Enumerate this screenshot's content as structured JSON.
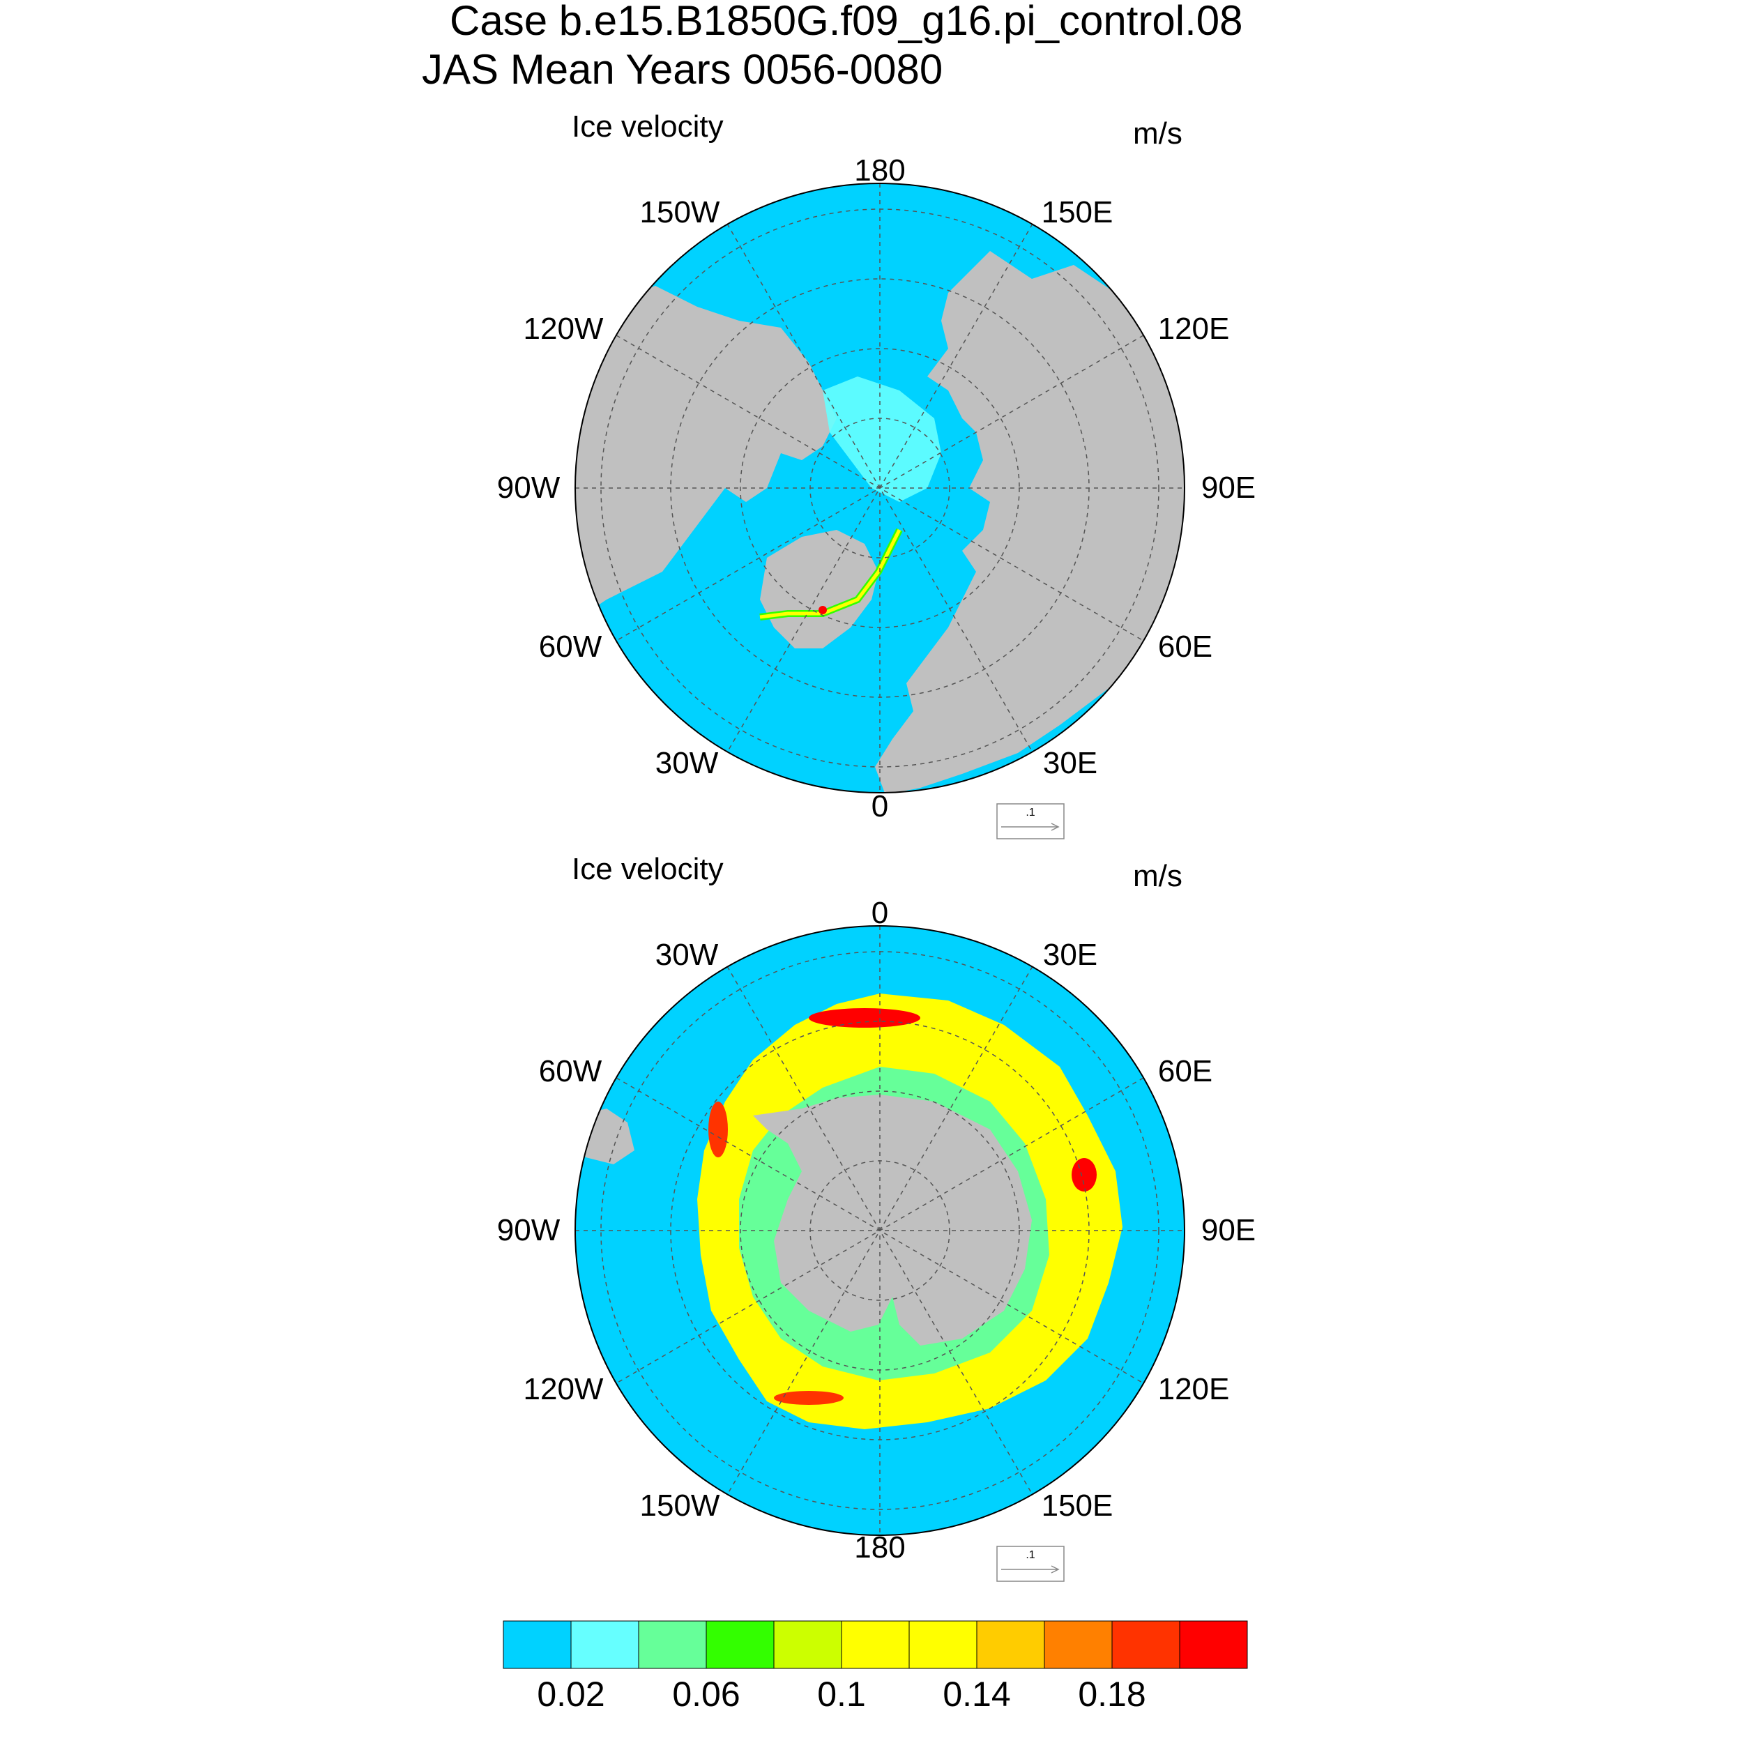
{
  "header": {
    "case_title": "Case b.e15.B1850G.f09_g16.pi_control.08",
    "period_title": "JAS Mean    Years 0056-0080"
  },
  "panels": [
    {
      "id": "north",
      "field_label": "Ice velocity",
      "units": "m/s",
      "ref_vector_label": ".1",
      "lon_labels": {
        "top": "180",
        "bottom": "0",
        "left": "90W",
        "right": "90E",
        "upper_left_1": "150W",
        "upper_left_2": "120W",
        "upper_right_1": "150E",
        "upper_right_2": "120E",
        "lower_left_1": "60W",
        "lower_left_2": "30W",
        "lower_right_1": "60E",
        "lower_right_2": "30E"
      }
    },
    {
      "id": "south",
      "field_label": "Ice velocity",
      "units": "m/s",
      "ref_vector_label": ".1",
      "lon_labels": {
        "top": "0",
        "bottom": "180",
        "left": "90W",
        "right": "90E",
        "upper_left_1": "30W",
        "upper_left_2": "60W",
        "upper_right_1": "30E",
        "upper_right_2": "60E",
        "lower_left_1": "120W",
        "lower_left_2": "150W",
        "lower_right_1": "120E",
        "lower_right_2": "150E"
      }
    }
  ],
  "colorbar": {
    "colors": [
      "#00d2ff",
      "#66ffff",
      "#66ff99",
      "#33ff00",
      "#ccff00",
      "#ffff00",
      "#ffff00",
      "#ffcc00",
      "#ff8000",
      "#ff3300",
      "#ff0000"
    ],
    "tick_labels": [
      "0.02",
      "0.06",
      "0.1",
      "0.14",
      "0.18"
    ]
  },
  "colors": {
    "ocean": "#00d2ff",
    "land": "#c0c0c0",
    "ice_low": "#66ffff",
    "ice_mid": "#33ff00",
    "ice_high": "#ffff00",
    "ice_peak": "#ff0000"
  }
}
